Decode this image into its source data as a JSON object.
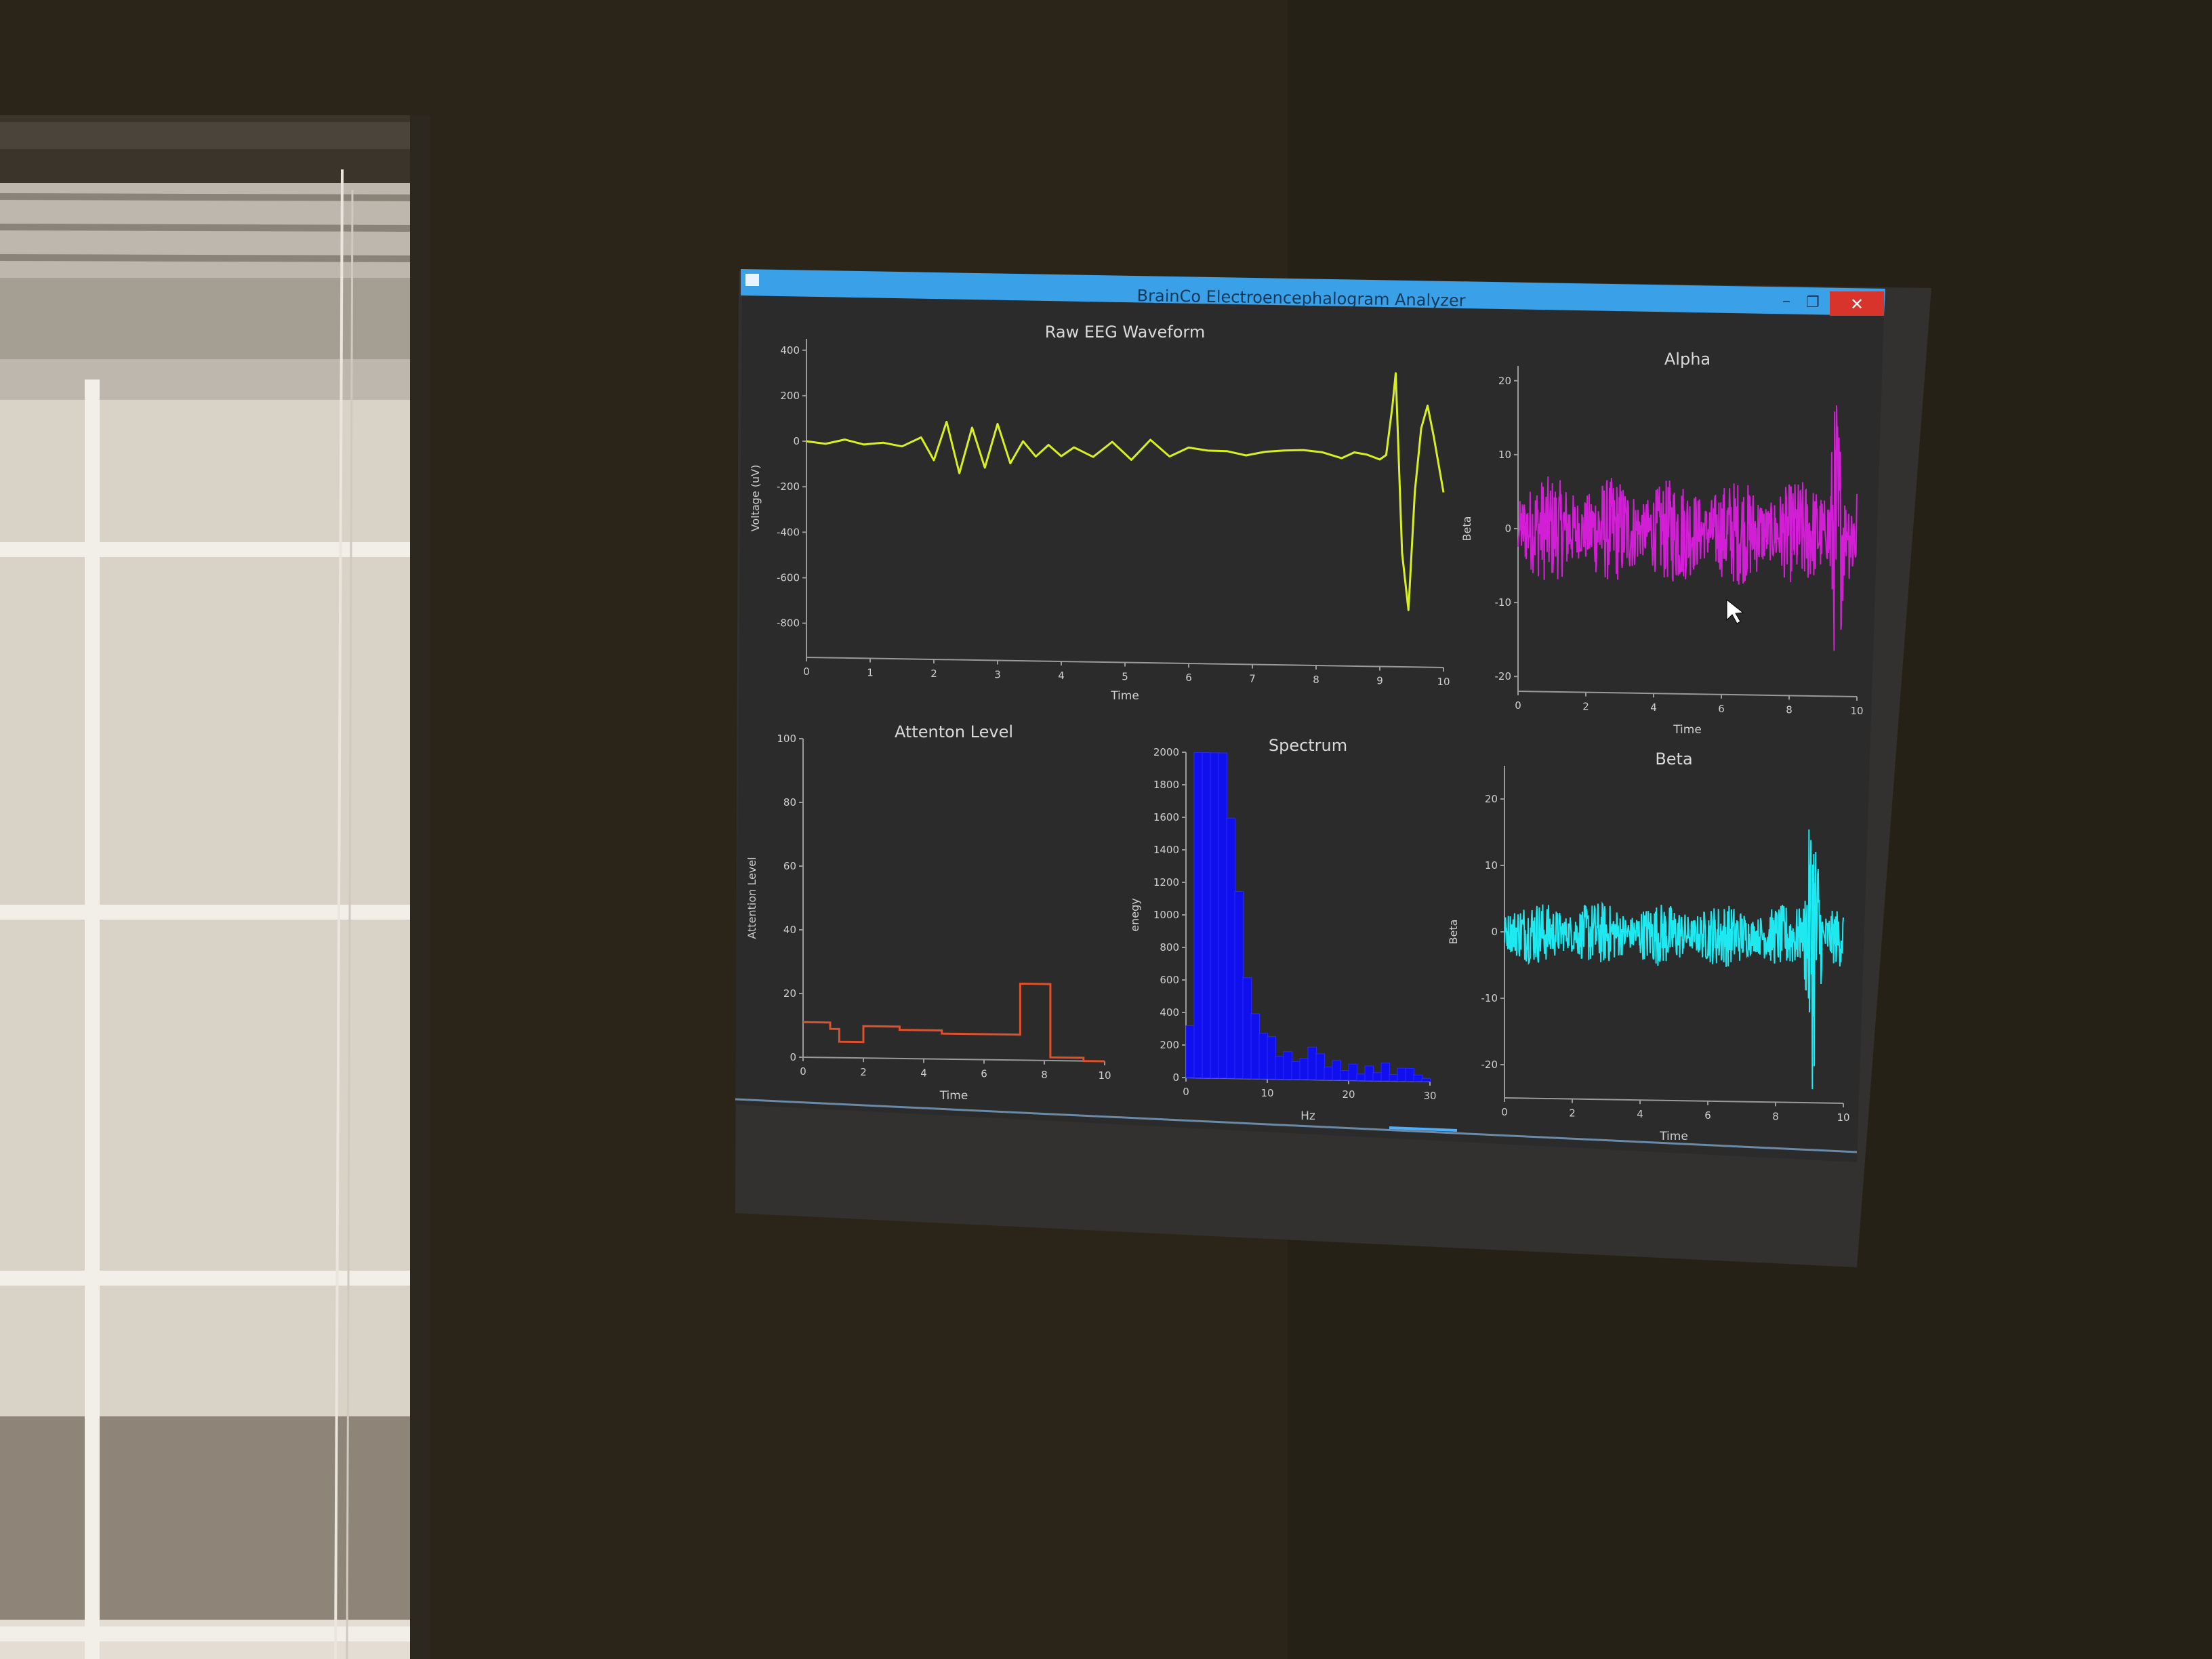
{
  "window": {
    "title": "BrainCo Electroencephalogram Analyzer",
    "controls": {
      "minimize": "–",
      "restore": "❐",
      "close": "✕"
    },
    "title_bar_color": "#3aa0e8",
    "close_color": "#d9342b",
    "plot_background": "#2b2b2b"
  },
  "charts": {
    "raw": {
      "title": "Raw EEG Waveform",
      "xlabel": "Time",
      "ylabel": "Voltage (uV)",
      "color": "#d8f020",
      "xticks": [
        "0",
        "1",
        "2",
        "3",
        "4",
        "5",
        "6",
        "7",
        "8",
        "9",
        "10"
      ],
      "yticks": [
        "400",
        "200",
        "0",
        "-200",
        "-400",
        "-600",
        "-800"
      ]
    },
    "alpha": {
      "title": "Alpha",
      "xlabel": "Time",
      "ylabel": "Beta",
      "color": "#d21fd6",
      "xticks": [
        "0",
        "2",
        "4",
        "6",
        "8",
        "10"
      ],
      "yticks": [
        "20",
        "10",
        "0",
        "-10",
        "-20"
      ]
    },
    "attention": {
      "title": "Attenton Level",
      "xlabel": "Time",
      "ylabel": "Attention Level",
      "color": "#e0502a",
      "xticks": [
        "0",
        "2",
        "4",
        "6",
        "8",
        "10"
      ],
      "yticks": [
        "100",
        "80",
        "60",
        "40",
        "20",
        "0"
      ]
    },
    "spectrum": {
      "title": "Spectrum",
      "xlabel": "Hz",
      "ylabel": "enegy",
      "color": "#1010ee",
      "xticks": [
        "0",
        "10",
        "20",
        "30"
      ],
      "yticks": [
        "2000",
        "1800",
        "1600",
        "1400",
        "1200",
        "1000",
        "800",
        "600",
        "400",
        "200",
        "0"
      ]
    },
    "beta": {
      "title": "Beta",
      "xlabel": "Time",
      "ylabel": "Beta",
      "color": "#1ee8f0",
      "xticks": [
        "0",
        "2",
        "4",
        "6",
        "8",
        "10"
      ],
      "yticks": [
        "20",
        "10",
        "0",
        "-10",
        "-20"
      ]
    }
  },
  "chart_data": [
    {
      "type": "line",
      "title": "Raw EEG Waveform",
      "xlabel": "Time",
      "ylabel": "Voltage (uV)",
      "xlim": [
        0,
        10
      ],
      "ylim": [
        -950,
        450
      ],
      "series": [
        {
          "x": [
            0,
            0.3,
            0.6,
            0.9,
            1.2,
            1.5,
            1.8,
            2.0,
            2.2,
            2.4,
            2.6,
            2.8,
            3.0,
            3.2,
            3.4,
            3.6,
            3.8,
            4.0,
            4.2,
            4.5,
            4.8,
            5.1,
            5.4,
            5.7,
            6.0,
            6.3,
            6.6,
            6.9,
            7.2,
            7.5,
            7.8,
            8.1,
            8.4,
            8.6,
            8.8,
            9.0,
            9.1,
            9.2,
            9.25,
            9.35,
            9.45,
            9.55,
            9.65,
            9.75,
            9.85,
            9.95,
            10.0
          ],
          "y": [
            0,
            -10,
            10,
            -15,
            5,
            -20,
            10,
            -80,
            90,
            -120,
            60,
            -110,
            80,
            -90,
            20,
            -60,
            10,
            -50,
            0,
            -40,
            10,
            -70,
            20,
            -30,
            0,
            -20,
            -10,
            -25,
            -10,
            -20,
            -15,
            -10,
            -35,
            -20,
            -10,
            -40,
            -20,
            200,
            340,
            -450,
            -700,
            -180,
            100,
            200,
            60,
            -100,
            -180
          ]
        }
      ]
    },
    {
      "type": "line",
      "title": "Alpha",
      "xlabel": "Time",
      "ylabel": "Beta",
      "xlim": [
        0,
        10
      ],
      "ylim": [
        -22,
        22
      ],
      "series": [
        {
          "x": [
            0,
            10
          ],
          "y_range": [
            -22,
            21
          ],
          "typical_amplitude": 6
        }
      ]
    },
    {
      "type": "line",
      "title": "Attenton Level",
      "xlabel": "Time",
      "ylabel": "Attention Level",
      "xlim": [
        0,
        10
      ],
      "ylim": [
        0,
        100
      ],
      "series": [
        {
          "x": [
            0,
            0.9,
            0.9,
            1.2,
            1.2,
            2.0,
            2.0,
            3.2,
            3.2,
            4.6,
            4.6,
            6.9,
            6.9,
            7.2,
            7.2,
            8.2,
            8.2,
            9.3,
            9.3,
            10
          ],
          "y": [
            11,
            11,
            9,
            9,
            5,
            5,
            10,
            10,
            9,
            9,
            8,
            8,
            8,
            8,
            24,
            24,
            1,
            1,
            0,
            0
          ]
        }
      ]
    },
    {
      "type": "bar",
      "title": "Spectrum",
      "xlabel": "Hz",
      "ylabel": "enegy",
      "xlim": [
        0,
        30
      ],
      "ylim": [
        0,
        2000
      ],
      "categories": [
        1,
        2,
        3,
        4,
        5,
        6,
        7,
        8,
        9,
        10,
        11,
        12,
        13,
        14,
        15,
        16,
        17,
        18,
        19,
        20,
        21,
        22,
        23,
        24,
        25,
        26,
        27,
        28,
        29,
        30
      ],
      "values": [
        320,
        2000,
        2000,
        2000,
        2000,
        1600,
        1150,
        620,
        400,
        280,
        260,
        140,
        170,
        110,
        130,
        200,
        160,
        80,
        120,
        60,
        100,
        40,
        90,
        50,
        110,
        40,
        80,
        80,
        40,
        20
      ]
    },
    {
      "type": "line",
      "title": "Beta",
      "xlabel": "Time",
      "ylabel": "Beta",
      "xlim": [
        0,
        10
      ],
      "ylim": [
        -25,
        25
      ],
      "series": [
        {
          "x": [
            0,
            10
          ],
          "y_range": [
            -25,
            24
          ],
          "typical_amplitude": 4
        }
      ]
    }
  ]
}
